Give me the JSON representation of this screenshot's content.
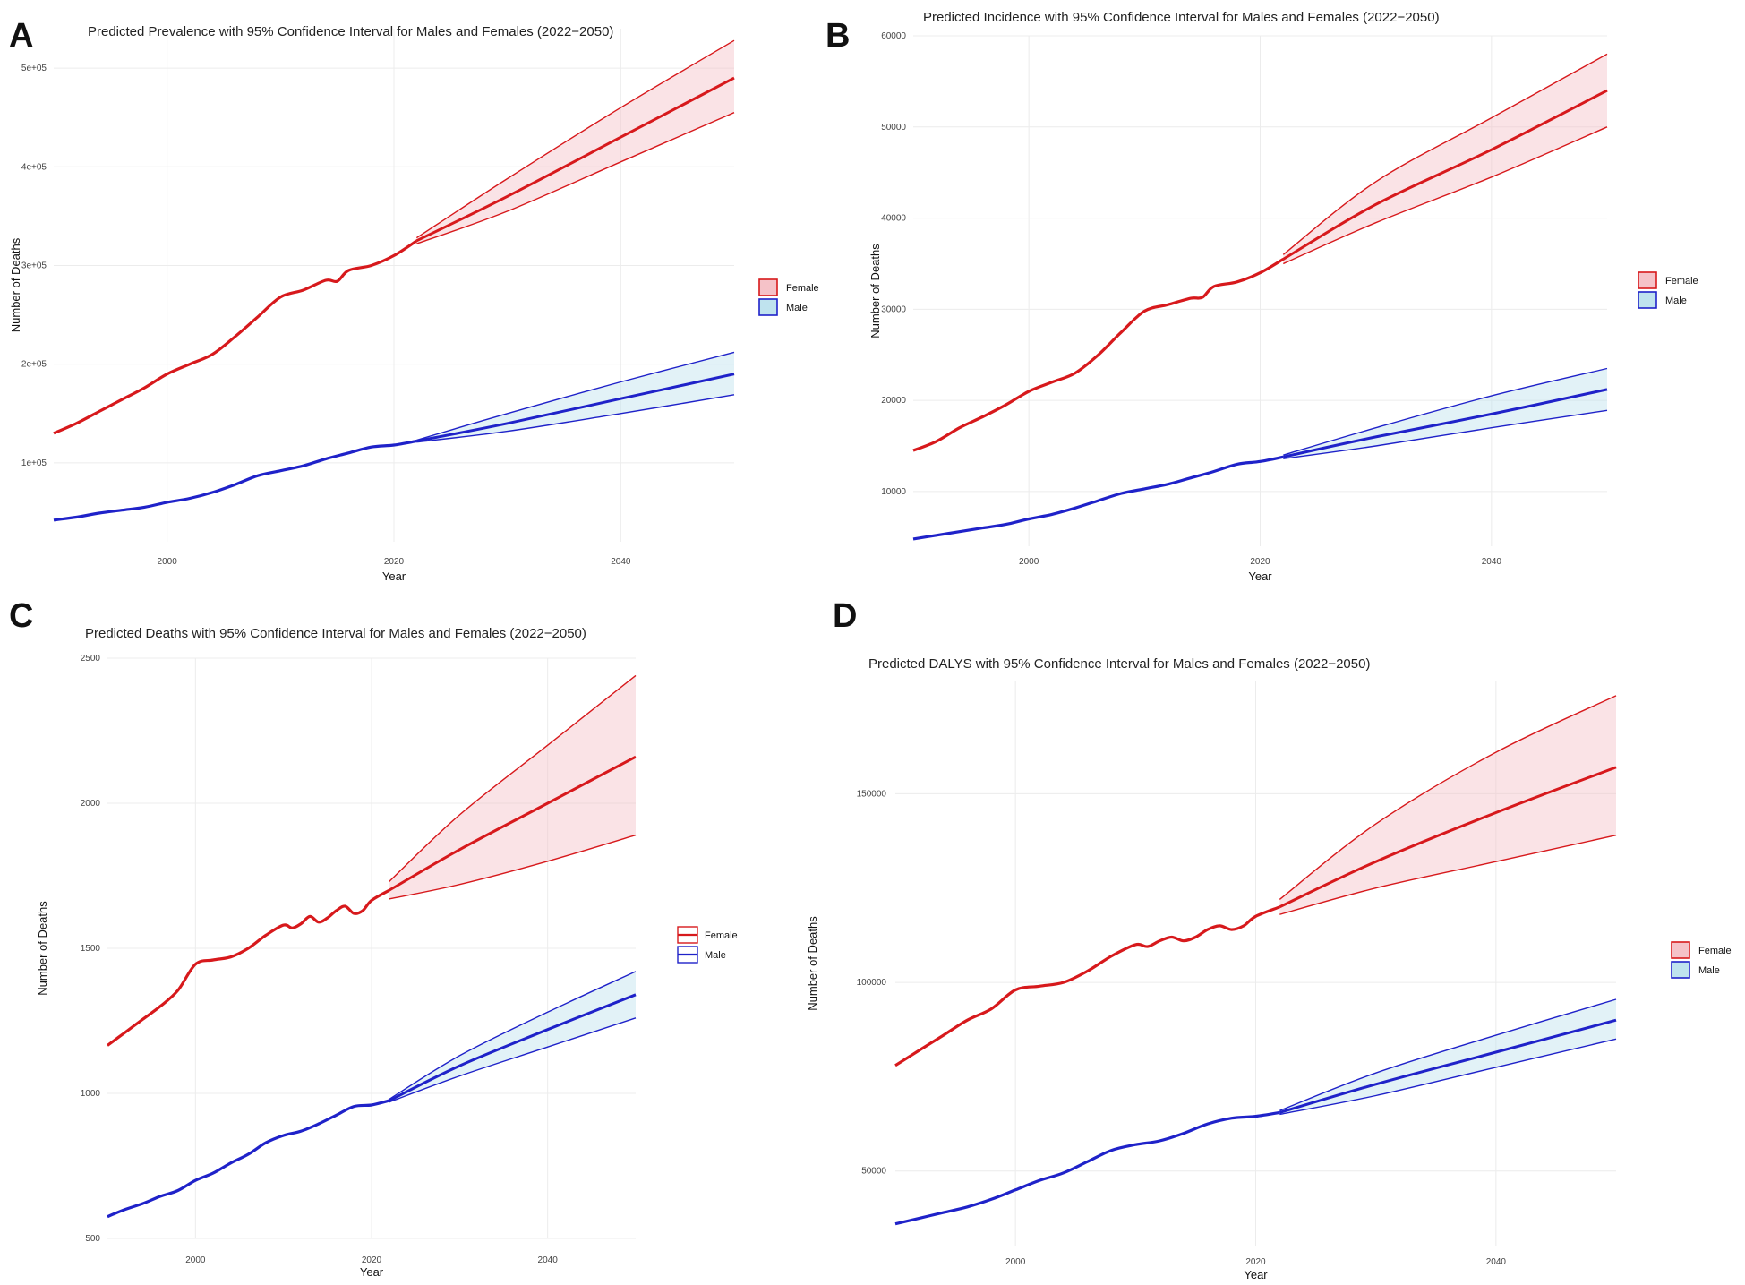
{
  "colors": {
    "female": "#d7191c",
    "male": "#1f22c9",
    "female_fill": "#f5c2c8",
    "male_fill": "#bfe3ee"
  },
  "chart_data": [
    {
      "panel": "A",
      "type": "line",
      "title": "Predicted Prevalence with 95% Confidence Interval for Males and Females (2022−2050)",
      "xlabel": "Year",
      "ylabel": "Number of Deaths",
      "xlim": [
        1990,
        2050
      ],
      "ylim": [
        20000,
        540000
      ],
      "yticks": [
        100000,
        200000,
        300000,
        400000,
        500000
      ],
      "ytick_labels": [
        "1e+05",
        "2e+05",
        "3e+05",
        "4e+05",
        "5e+05"
      ],
      "xticks": [
        2000,
        2020,
        2040
      ],
      "xtick_labels": [
        "2000",
        "2020",
        "2040"
      ],
      "legend_style": "fill",
      "legend": [
        "Female",
        "Male"
      ],
      "series": [
        {
          "name": "Female",
          "x": [
            1990,
            1992,
            1994,
            1996,
            1998,
            2000,
            2002,
            2004,
            2006,
            2008,
            2010,
            2012,
            2014,
            2015,
            2016,
            2018,
            2020,
            2022
          ],
          "values": [
            130000,
            140000,
            152000,
            164000,
            176000,
            190000,
            200000,
            210000,
            228000,
            248000,
            268000,
            275000,
            285000,
            284000,
            295000,
            300000,
            310000,
            325000
          ],
          "forecast": {
            "x": [
              2022,
              2030,
              2040,
              2050
            ],
            "values": [
              325000,
              370000,
              430000,
              490000
            ],
            "lower": [
              322000,
              355000,
              405000,
              455000
            ],
            "upper": [
              328000,
              388000,
              460000,
              528000
            ]
          }
        },
        {
          "name": "Male",
          "x": [
            1990,
            1992,
            1994,
            1996,
            1998,
            2000,
            2002,
            2004,
            2006,
            2008,
            2010,
            2012,
            2014,
            2016,
            2018,
            2020,
            2022
          ],
          "values": [
            42000,
            45000,
            49000,
            52000,
            55000,
            60000,
            64000,
            70000,
            78000,
            87000,
            92000,
            97000,
            104000,
            110000,
            116000,
            118000,
            122000
          ],
          "forecast": {
            "x": [
              2022,
              2030,
              2040,
              2050
            ],
            "values": [
              122000,
              140000,
              165000,
              190000
            ],
            "lower": [
              121000,
              132000,
              150000,
              169000
            ],
            "upper": [
              123000,
              150000,
              182000,
              212000
            ]
          }
        }
      ]
    },
    {
      "panel": "B",
      "type": "line",
      "title": "Predicted Incidence with 95% Confidence Interval for Males and Females (2022−2050)",
      "xlabel": "Year",
      "ylabel": "Number of Deaths",
      "xlim": [
        1990,
        2050
      ],
      "ylim": [
        4000,
        60000
      ],
      "yticks": [
        10000,
        20000,
        30000,
        40000,
        50000,
        60000
      ],
      "ytick_labels": [
        "10000",
        "20000",
        "30000",
        "40000",
        "50000",
        "60000"
      ],
      "xticks": [
        2000,
        2020,
        2040
      ],
      "xtick_labels": [
        "2000",
        "2020",
        "2040"
      ],
      "legend_style": "fill",
      "legend": [
        "Female",
        "Male"
      ],
      "series": [
        {
          "name": "Female",
          "x": [
            1990,
            1992,
            1994,
            1996,
            1998,
            2000,
            2002,
            2004,
            2006,
            2008,
            2010,
            2012,
            2014,
            2015,
            2016,
            2018,
            2020,
            2022
          ],
          "values": [
            14500,
            15500,
            17000,
            18200,
            19500,
            21000,
            22000,
            23000,
            25000,
            27500,
            29800,
            30500,
            31200,
            31300,
            32500,
            33000,
            34000,
            35500
          ],
          "forecast": {
            "x": [
              2022,
              2030,
              2040,
              2050
            ],
            "values": [
              35500,
              41500,
              47500,
              54000
            ],
            "lower": [
              35000,
              39500,
              44500,
              50000
            ],
            "upper": [
              36000,
              44000,
              51000,
              58000
            ]
          }
        },
        {
          "name": "Male",
          "x": [
            1990,
            1992,
            1994,
            1996,
            1998,
            2000,
            2002,
            2004,
            2006,
            2008,
            2010,
            2012,
            2014,
            2016,
            2018,
            2020,
            2022
          ],
          "values": [
            4800,
            5200,
            5600,
            6000,
            6400,
            7000,
            7500,
            8200,
            9000,
            9800,
            10300,
            10800,
            11500,
            12200,
            13000,
            13300,
            13800
          ],
          "forecast": {
            "x": [
              2022,
              2030,
              2040,
              2050
            ],
            "values": [
              13800,
              16000,
              18500,
              21200
            ],
            "lower": [
              13600,
              15000,
              17000,
              18900
            ],
            "upper": [
              14000,
              17000,
              20500,
              23500
            ]
          }
        }
      ]
    },
    {
      "panel": "C",
      "type": "line",
      "title": "Predicted Deaths with 95% Confidence Interval for Males and Females (2022−2050)",
      "xlabel": "Year",
      "ylabel": "Number of Deaths",
      "xlim": [
        1990,
        2050
      ],
      "ylim": [
        500,
        2500
      ],
      "yticks": [
        500,
        1000,
        1500,
        2000,
        2500
      ],
      "ytick_labels": [
        "500",
        "1000",
        "1500",
        "2000",
        "2500"
      ],
      "xticks": [
        2000,
        2020,
        2040
      ],
      "xtick_labels": [
        "2000",
        "2020",
        "2040"
      ],
      "legend_style": "outline",
      "legend": [
        "Female",
        "Male"
      ],
      "series": [
        {
          "name": "Female",
          "x": [
            1990,
            1992,
            1994,
            1996,
            1998,
            2000,
            2002,
            2004,
            2006,
            2008,
            2010,
            2011,
            2012,
            2013,
            2014,
            2015,
            2016,
            2017,
            2018,
            2019,
            2020,
            2022
          ],
          "values": [
            1165,
            1210,
            1255,
            1300,
            1355,
            1445,
            1460,
            1470,
            1500,
            1545,
            1580,
            1570,
            1585,
            1610,
            1590,
            1605,
            1630,
            1645,
            1620,
            1630,
            1665,
            1700
          ],
          "forecast": {
            "x": [
              2022,
              2030,
              2040,
              2050
            ],
            "values": [
              1700,
              1840,
              2000,
              2160
            ],
            "lower": [
              1670,
              1720,
              1800,
              1890
            ],
            "upper": [
              1730,
              1960,
              2200,
              2440
            ]
          }
        },
        {
          "name": "Male",
          "x": [
            1990,
            1992,
            1994,
            1996,
            1998,
            2000,
            2002,
            2004,
            2006,
            2008,
            2010,
            2012,
            2014,
            2016,
            2018,
            2020,
            2022
          ],
          "values": [
            575,
            600,
            620,
            645,
            665,
            700,
            725,
            760,
            790,
            830,
            855,
            870,
            895,
            925,
            955,
            960,
            975
          ],
          "forecast": {
            "x": [
              2022,
              2030,
              2040,
              2050
            ],
            "values": [
              975,
              1095,
              1220,
              1340
            ],
            "lower": [
              970,
              1060,
              1160,
              1260
            ],
            "upper": [
              980,
              1130,
              1280,
              1420
            ]
          }
        }
      ]
    },
    {
      "panel": "D",
      "type": "line",
      "title": "Predicted DALYS with 95% Confidence Interval for Males and Females (2022−2050)",
      "xlabel": "Year",
      "ylabel": "Number of Deaths",
      "xlim": [
        1990,
        2050
      ],
      "ylim": [
        30000,
        180000
      ],
      "yticks": [
        50000,
        100000,
        150000
      ],
      "ytick_labels": [
        "50000",
        "100000",
        "150000"
      ],
      "xticks": [
        2000,
        2020,
        2040
      ],
      "xtick_labels": [
        "2000",
        "2020",
        "2040"
      ],
      "legend_style": "fill",
      "legend": [
        "Female",
        "Male"
      ],
      "series": [
        {
          "name": "Female",
          "x": [
            1990,
            1992,
            1994,
            1996,
            1998,
            2000,
            2002,
            2004,
            2006,
            2008,
            2010,
            2011,
            2012,
            2013,
            2014,
            2015,
            2016,
            2017,
            2018,
            2019,
            2020,
            2022
          ],
          "values": [
            78000,
            82000,
            86000,
            90000,
            93000,
            98000,
            99000,
            100000,
            103000,
            107000,
            110000,
            109500,
            111000,
            112000,
            111000,
            112000,
            114000,
            115000,
            114000,
            115000,
            117500,
            120000
          ],
          "forecast": {
            "x": [
              2022,
              2030,
              2040,
              2050
            ],
            "values": [
              120000,
              132000,
              145000,
              157000
            ],
            "lower": [
              118000,
              125000,
              132000,
              139000
            ],
            "upper": [
              122000,
              142000,
              161000,
              176000
            ]
          }
        },
        {
          "name": "Male",
          "x": [
            1990,
            1992,
            1994,
            1996,
            1998,
            2000,
            2002,
            2004,
            2006,
            2008,
            2010,
            2012,
            2014,
            2016,
            2018,
            2020,
            2022
          ],
          "values": [
            36000,
            37500,
            39000,
            40500,
            42500,
            45000,
            47500,
            49500,
            52500,
            55500,
            57000,
            58000,
            60000,
            62500,
            64000,
            64500,
            65500
          ],
          "forecast": {
            "x": [
              2022,
              2030,
              2040,
              2050
            ],
            "values": [
              65500,
              73000,
              81500,
              90000
            ],
            "lower": [
              65000,
              70000,
              77500,
              85000
            ],
            "upper": [
              66000,
              76000,
              86000,
              95500
            ]
          }
        }
      ]
    }
  ]
}
